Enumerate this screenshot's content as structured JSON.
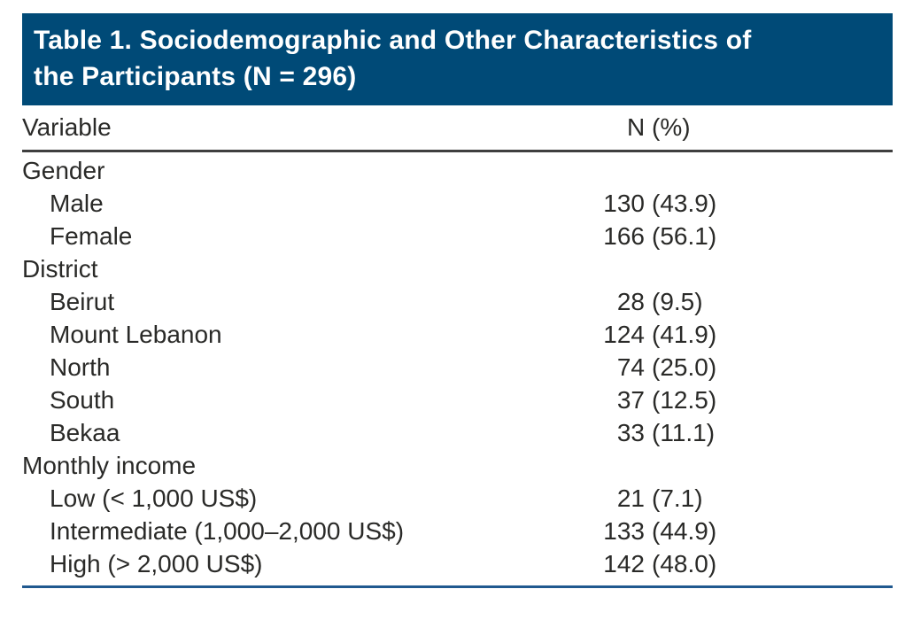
{
  "header": {
    "title_line1": "Table 1. Sociodemographic and Other Characteristics of",
    "title_line2": "the Participants (N = 296)",
    "background_color": "#004a77",
    "text_color": "#ffffff"
  },
  "table": {
    "columns": {
      "variable": "Variable",
      "n_pct": "N (%)"
    },
    "rows": [
      {
        "label": "Gender",
        "indent": false,
        "count": "",
        "pct": ""
      },
      {
        "label": "Male",
        "indent": true,
        "count": "130",
        "pct": "(43.9)"
      },
      {
        "label": "Female",
        "indent": true,
        "count": "166",
        "pct": "(56.1)"
      },
      {
        "label": "District",
        "indent": false,
        "count": "",
        "pct": ""
      },
      {
        "label": "Beirut",
        "indent": true,
        "count": "28",
        "pct": "(9.5)"
      },
      {
        "label": "Mount Lebanon",
        "indent": true,
        "count": "124",
        "pct": "(41.9)"
      },
      {
        "label": "North",
        "indent": true,
        "count": "74",
        "pct": "(25.0)"
      },
      {
        "label": "South",
        "indent": true,
        "count": "37",
        "pct": "(12.5)"
      },
      {
        "label": "Bekaa",
        "indent": true,
        "count": "33",
        "pct": "(11.1)"
      },
      {
        "label": "Monthly income",
        "indent": false,
        "count": "",
        "pct": ""
      },
      {
        "label": "Low (< 1,000 US$)",
        "indent": true,
        "count": "21",
        "pct": "(7.1)"
      },
      {
        "label": "Intermediate (1,000–2,000 US$)",
        "indent": true,
        "count": "133",
        "pct": "(44.9)"
      },
      {
        "label": "High (> 2,000 US$)",
        "indent": true,
        "count": "142",
        "pct": "(48.0)"
      }
    ],
    "rules": {
      "header_rule_color": "#3f3f3f",
      "bottom_rule_color": "#20598f"
    }
  }
}
